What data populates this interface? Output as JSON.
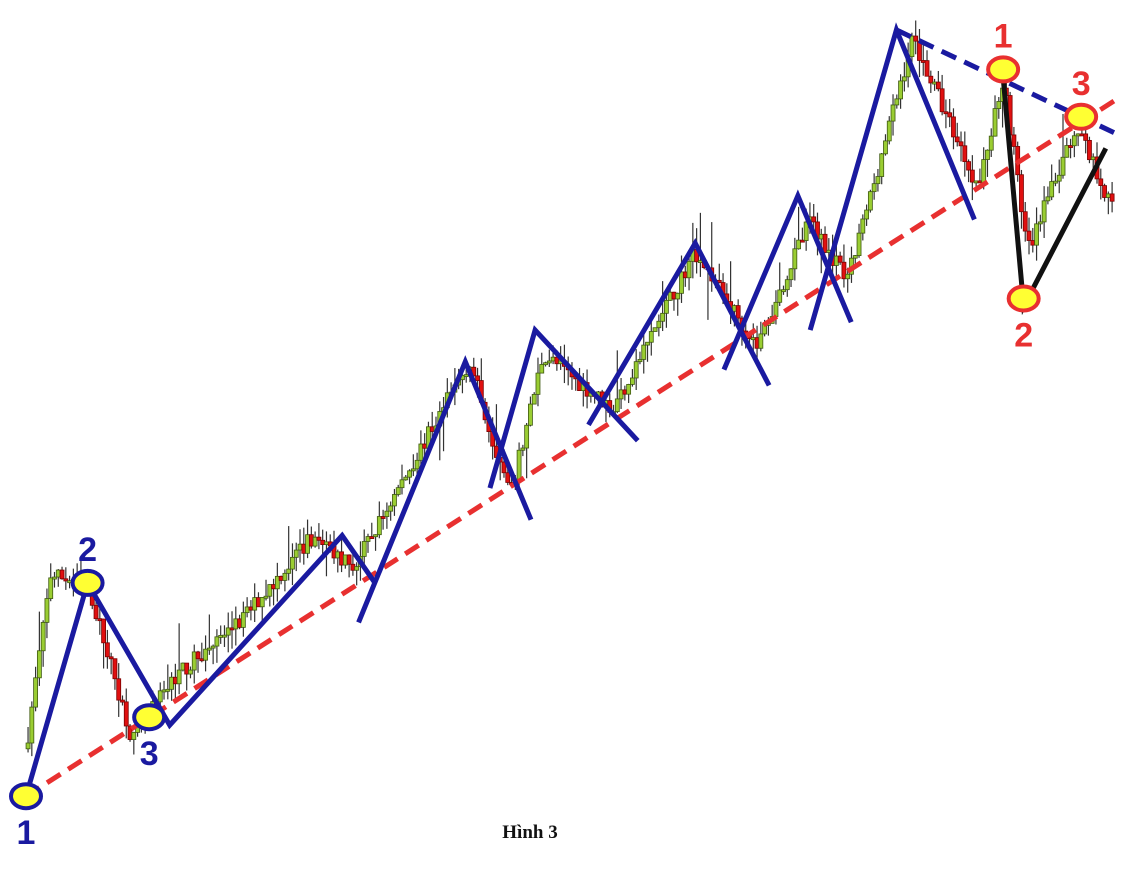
{
  "caption": "Hình 3",
  "colors": {
    "bull_body": "#9ACD32",
    "bull_edge": "#3f5a10",
    "bear_body": "#e01010",
    "bear_edge": "#7a0000",
    "wick": "#333333",
    "zigzag": "#1a1aa0",
    "trend_support": "#e83030",
    "trend_resistance": "#1a1aa0",
    "reversal_zigzag": "#111111",
    "marker_fill": "#ffff33",
    "marker_stroke_up": "#1a1aa0",
    "marker_stroke_down": "#e83030",
    "label_up": "#1a1aa0",
    "label_down": "#e83030"
  },
  "chart_data": {
    "type": "candlestick",
    "title": "",
    "xlabel": "",
    "ylabel": "",
    "grid": false,
    "legend": "none",
    "xlim": [
      0,
      265
    ],
    "ylim": [
      0,
      100
    ],
    "price_path": [
      [
        0,
        8
      ],
      [
        6,
        30
      ],
      [
        15,
        29
      ],
      [
        26,
        9
      ],
      [
        36,
        17
      ],
      [
        52,
        24
      ],
      [
        70,
        35
      ],
      [
        80,
        31
      ],
      [
        108,
        57
      ],
      [
        118,
        40
      ],
      [
        126,
        58
      ],
      [
        143,
        51
      ],
      [
        163,
        71
      ],
      [
        178,
        59
      ],
      [
        191,
        75
      ],
      [
        200,
        67
      ],
      [
        216,
        98
      ],
      [
        232,
        79
      ],
      [
        238,
        93
      ],
      [
        244,
        71
      ],
      [
        256,
        87
      ],
      [
        265,
        76
      ]
    ],
    "zigzag_blue": [
      [
        [
          0,
          2
        ],
        [
          15,
          29
        ],
        [
          35,
          11
        ],
        [
          77,
          35
        ],
        [
          85,
          29
        ]
      ],
      [
        [
          81,
          24
        ],
        [
          107,
          57
        ],
        [
          123,
          37
        ]
      ],
      [
        [
          113,
          41
        ],
        [
          124,
          61
        ],
        [
          149,
          47
        ]
      ],
      [
        [
          137,
          49
        ],
        [
          163,
          72
        ],
        [
          181,
          54
        ]
      ],
      [
        [
          170,
          56
        ],
        [
          188,
          78
        ],
        [
          201,
          62
        ]
      ],
      [
        [
          191,
          61
        ],
        [
          212,
          99
        ],
        [
          231,
          75
        ]
      ]
    ],
    "trendline_support": {
      "from": [
        0,
        2
      ],
      "to": [
        265,
        90
      ],
      "style": "dashed"
    },
    "trendline_resistance": {
      "from": [
        212,
        99
      ],
      "to": [
        265,
        86
      ],
      "style": "dashed"
    },
    "reversal_zigzag": [
      [
        238,
        93
      ],
      [
        243,
        64
      ],
      [
        263,
        84
      ]
    ],
    "markers": [
      {
        "label": "1",
        "x": 0,
        "y": 2,
        "group": "up",
        "label_pos": "below"
      },
      {
        "label": "2",
        "x": 15,
        "y": 29,
        "group": "up",
        "label_pos": "above"
      },
      {
        "label": "3",
        "x": 30,
        "y": 12,
        "group": "up",
        "label_pos": "below"
      },
      {
        "label": "1",
        "x": 238,
        "y": 94,
        "group": "down",
        "label_pos": "above"
      },
      {
        "label": "2",
        "x": 243,
        "y": 65,
        "group": "down",
        "label_pos": "below"
      },
      {
        "label": "3",
        "x": 257,
        "y": 88,
        "group": "down",
        "label_pos": "above"
      }
    ]
  }
}
